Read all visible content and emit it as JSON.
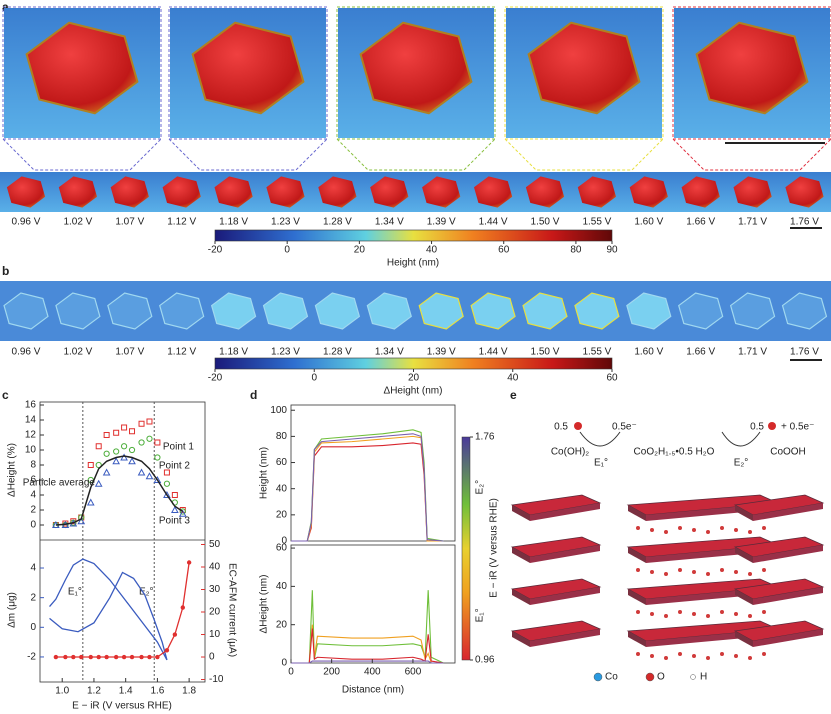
{
  "figure": {
    "panel_labels": [
      "a",
      "b",
      "c",
      "d",
      "e"
    ],
    "voltages": [
      "0.96 V",
      "1.02 V",
      "1.07 V",
      "1.12 V",
      "1.18 V",
      "1.23 V",
      "1.28 V",
      "1.34 V",
      "1.39 V",
      "1.44 V",
      "1.50 V",
      "1.55 V",
      "1.60 V",
      "1.66 V",
      "1.71 V",
      "1.76 V"
    ],
    "a_colorbar": {
      "label": "Height (nm)",
      "lim": [
        -20,
        90
      ],
      "ticks": [
        -20,
        0,
        20,
        40,
        60,
        80,
        90
      ]
    },
    "b_colorbar": {
      "label": "ΔHeight (nm)",
      "lim": [
        -20,
        60
      ],
      "ticks": [
        -20,
        0,
        20,
        40,
        60
      ]
    },
    "d_colorbar": {
      "label": "E − iR (V versus RHE)",
      "lim": [
        0.96,
        1.76
      ],
      "ticks": [
        0.96,
        1.76
      ],
      "markers": [
        {
          "label": "E₁°",
          "value": 1.12
        },
        {
          "label": "E₂°",
          "value": 1.58
        }
      ]
    },
    "e": {
      "left_coef": "0.5",
      "left_electron": "0.5e⁻",
      "reactant": "Co(OH)₂",
      "step1": "E₁°",
      "intermediate": "CoO₂H₁.₅•0.5 H₂O",
      "step2": "E₂°",
      "right_coef": "0.5",
      "right_electron": "+ 0.5e⁻",
      "product": "CoOOH",
      "legend": [
        "Co",
        "O",
        "H"
      ]
    }
  },
  "chart_data": [
    {
      "type": "scatter",
      "ylabel": "ΔHeight (%)",
      "x": [
        0.96,
        1.02,
        1.07,
        1.12,
        1.18,
        1.23,
        1.28,
        1.34,
        1.39,
        1.44,
        1.5,
        1.55,
        1.6,
        1.66,
        1.71,
        1.76
      ],
      "xlim": [
        0.86,
        1.9
      ],
      "ylim": [
        -2,
        16.4
      ],
      "yticks": [
        0,
        2,
        4,
        6,
        8,
        10,
        12,
        14,
        16
      ],
      "series": [
        {
          "name": "Point 1",
          "color": "#e0302f",
          "marker": "square",
          "values": [
            0,
            0.2,
            0.5,
            1,
            8,
            10.5,
            12,
            12.3,
            13,
            12.5,
            13.5,
            13.8,
            11,
            7,
            4,
            2
          ]
        },
        {
          "name": "Point 2",
          "color": "#4cae3a",
          "marker": "circle",
          "values": [
            0,
            0,
            0.3,
            1,
            6,
            8,
            9.5,
            9.8,
            10.5,
            10,
            11,
            11.5,
            9,
            5.5,
            3,
            1.8
          ]
        },
        {
          "name": "Point 3",
          "color": "#3a5bbf",
          "marker": "triangle",
          "values": [
            0,
            0,
            0.2,
            0.5,
            3,
            5.5,
            7,
            8.5,
            9,
            8.5,
            7,
            6.5,
            6,
            4,
            2,
            1.5
          ]
        },
        {
          "name": "Particle average",
          "color": "#222222",
          "marker": "line",
          "values": [
            0,
            0.1,
            0.3,
            0.8,
            5,
            7.5,
            8.5,
            9,
            9.2,
            9,
            8.5,
            7.5,
            6,
            4,
            2.5,
            1.8
          ]
        }
      ]
    },
    {
      "type": "line",
      "xlabel": "E − iR (V versus RHE)",
      "ylabel": "Δm (μg)",
      "y2label": "EC-AFM current (μA)",
      "xlim": [
        0.86,
        1.9
      ],
      "xticks": [
        {
          "value": 1.0,
          "label": "1.0"
        },
        {
          "value": 1.2,
          "label": "1.2"
        },
        {
          "value": 1.4,
          "label": "1.4"
        },
        {
          "value": 1.6,
          "label": "1.6"
        },
        {
          "value": 1.8,
          "label": "1.8"
        }
      ],
      "ylim": [
        -3.69,
        5.89
      ],
      "yticks": [
        -2,
        0,
        2,
        4
      ],
      "y2lim": [
        -11.1,
        52
      ],
      "y2ticks": [
        -10,
        0,
        10,
        20,
        30,
        40,
        50
      ],
      "annotations": [
        {
          "text": "E₁°",
          "x": 1.13
        },
        {
          "text": "E₂°",
          "x": 1.58
        }
      ],
      "series": [
        {
          "color": "#3a5bbf",
          "x": [
            0.92,
            0.96,
            1.02,
            1.07,
            1.13,
            1.2,
            1.3,
            1.4,
            1.5,
            1.6,
            1.66
          ],
          "values": [
            1.4,
            1.9,
            3.2,
            4.2,
            4.6,
            4.3,
            3.2,
            1.8,
            0.4,
            -1,
            -2.2
          ]
        },
        {
          "color": "#3a5bbf",
          "x": [
            0.92,
            1.0,
            1.1,
            1.2,
            1.3,
            1.38,
            1.45,
            1.52,
            1.58,
            1.63,
            1.66
          ],
          "values": [
            0.6,
            -0.1,
            -0.3,
            0.3,
            2,
            3.7,
            3.3,
            2.2,
            0.5,
            -1,
            -2.2
          ]
        },
        {
          "color": "#e0302f",
          "axis": "y2",
          "x": [
            0.96,
            1.02,
            1.07,
            1.12,
            1.18,
            1.23,
            1.28,
            1.34,
            1.39,
            1.44,
            1.5,
            1.55,
            1.6,
            1.66,
            1.71,
            1.76,
            1.8
          ],
          "values": [
            0,
            0,
            0,
            0,
            0,
            0,
            0,
            0,
            0,
            0,
            0,
            0,
            0,
            3,
            10,
            22,
            42
          ]
        }
      ]
    },
    {
      "type": "line",
      "ylabel": "Height (nm)",
      "xlim": [
        0,
        807
      ],
      "ylim": [
        0,
        104
      ],
      "yticks": [
        0,
        20,
        40,
        60,
        80,
        100
      ],
      "x": [
        0,
        80,
        100,
        115,
        150,
        300,
        450,
        600,
        640,
        655,
        670,
        750
      ],
      "series": [
        {
          "color": "#d8262e",
          "values": [
            0,
            0,
            10,
            65,
            72,
            72,
            73,
            75,
            74,
            50,
            0,
            0
          ]
        },
        {
          "color": "#f0a020",
          "values": [
            0,
            0,
            12,
            68,
            75,
            76,
            78,
            80,
            79,
            55,
            0,
            0
          ]
        },
        {
          "color": "#6fbf3a",
          "values": [
            0,
            0,
            15,
            70,
            78,
            80,
            82,
            85,
            83,
            60,
            2,
            0
          ]
        },
        {
          "color": "#7a5fb0",
          "values": [
            0,
            0,
            14,
            70,
            76,
            78,
            80,
            82,
            80,
            55,
            1,
            0
          ]
        }
      ]
    },
    {
      "type": "line",
      "ylabel": "ΔHeight (nm)",
      "xlabel": "Distance (nm)",
      "xlim": [
        0,
        807
      ],
      "xticks": [
        0,
        200,
        400,
        600
      ],
      "ylim": [
        0,
        61.6
      ],
      "yticks": [
        0,
        20,
        40,
        60
      ],
      "x": [
        0,
        90,
        105,
        115,
        130,
        300,
        450,
        600,
        640,
        660,
        675,
        690,
        750
      ],
      "series": [
        {
          "color": "#6fbf3a",
          "values": [
            0,
            0,
            38,
            2,
            10,
            9,
            9,
            10,
            9,
            3,
            38,
            3,
            0
          ]
        },
        {
          "color": "#f0a020",
          "values": [
            0,
            0,
            20,
            3,
            14,
            13,
            13,
            14,
            12,
            2,
            5,
            0,
            0
          ]
        },
        {
          "color": "#d8262e",
          "values": [
            0,
            0,
            18,
            2,
            3,
            2,
            2,
            3,
            2,
            1,
            15,
            1,
            0
          ]
        },
        {
          "color": "#7a5fb0",
          "values": [
            0,
            0,
            1,
            1,
            1,
            1,
            1,
            1,
            1,
            1,
            1,
            0,
            0
          ]
        }
      ]
    }
  ]
}
